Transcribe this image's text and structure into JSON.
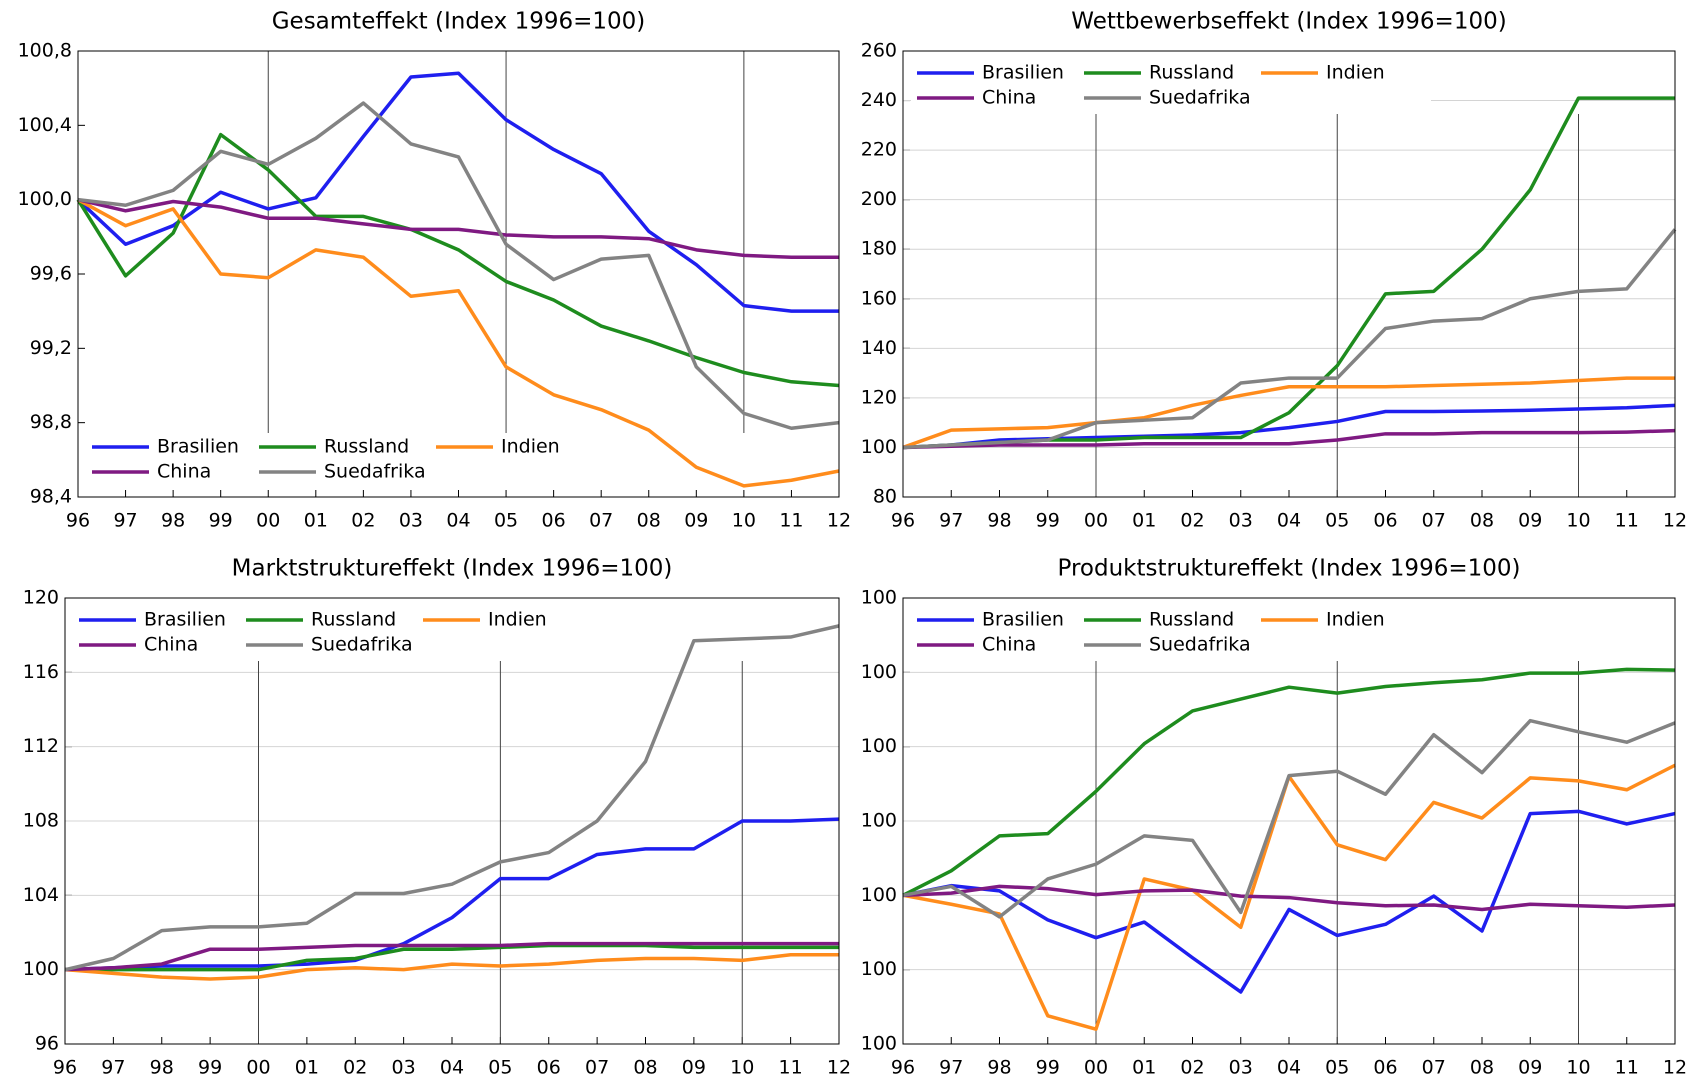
{
  "chart_data": [
    {
      "type": "line",
      "title": "Gesamteffekt (Index 1996=100)",
      "categories": [
        "96",
        "97",
        "98",
        "99",
        "00",
        "01",
        "02",
        "03",
        "04",
        "05",
        "06",
        "07",
        "08",
        "09",
        "10",
        "11",
        "12"
      ],
      "ylim": [
        98.4,
        100.8
      ],
      "yticks": [
        {
          "value": 98.4,
          "label": "98,4"
        },
        {
          "value": 98.8,
          "label": "98,8"
        },
        {
          "value": 99.2,
          "label": "99,2"
        },
        {
          "value": 99.6,
          "label": "99,6"
        },
        {
          "value": 100.0,
          "label": "100,0"
        },
        {
          "value": 100.4,
          "label": "100,4"
        },
        {
          "value": 100.8,
          "label": "100,8"
        }
      ],
      "grid": false,
      "legend": "lower left",
      "series": [
        {
          "name": "Brasilien",
          "color": "#1f1fef",
          "values": [
            100.0,
            99.76,
            99.86,
            100.04,
            99.95,
            100.01,
            100.34,
            100.66,
            100.68,
            100.43,
            100.27,
            100.14,
            99.83,
            99.65,
            99.43,
            99.4,
            99.4
          ]
        },
        {
          "name": "Russland",
          "color": "#1e8c1e",
          "values": [
            100.0,
            99.59,
            99.82,
            100.35,
            100.16,
            99.91,
            99.91,
            99.84,
            99.73,
            99.56,
            99.46,
            99.32,
            99.24,
            99.15,
            99.07,
            99.02,
            99.0
          ]
        },
        {
          "name": "Indien",
          "color": "#ff8c1c",
          "values": [
            100.0,
            99.86,
            99.95,
            99.6,
            99.58,
            99.73,
            99.69,
            99.48,
            99.51,
            99.1,
            98.95,
            98.87,
            98.76,
            98.56,
            98.46,
            98.49,
            98.54
          ]
        },
        {
          "name": "China",
          "color": "#7f1a82",
          "values": [
            100.0,
            99.94,
            99.99,
            99.96,
            99.9,
            99.9,
            99.87,
            99.84,
            99.84,
            99.81,
            99.8,
            99.8,
            99.79,
            99.73,
            99.7,
            99.69,
            99.69
          ]
        },
        {
          "name": "Suedafrika",
          "color": "#838383",
          "values": [
            100.0,
            99.97,
            100.05,
            100.26,
            100.19,
            100.33,
            100.52,
            100.3,
            100.23,
            99.76,
            99.57,
            99.68,
            99.7,
            99.1,
            98.85,
            98.77,
            98.8
          ]
        }
      ]
    },
    {
      "type": "line",
      "title": "Wettbewerbseffekt (Index 1996=100)",
      "categories": [
        "96",
        "97",
        "98",
        "99",
        "00",
        "01",
        "02",
        "03",
        "04",
        "05",
        "06",
        "07",
        "08",
        "09",
        "10",
        "11",
        "12"
      ],
      "ylim": [
        80,
        260
      ],
      "yticks": [
        80,
        100,
        120,
        140,
        160,
        180,
        200,
        220,
        240,
        260
      ],
      "grid": true,
      "legend": "upper left",
      "series": [
        {
          "name": "Brasilien",
          "color": "#1f1fef",
          "values": [
            100,
            101,
            103,
            103.5,
            104,
            104.5,
            105,
            106,
            108,
            110.5,
            114.5,
            114.5,
            114.7,
            115,
            115.5,
            116,
            117
          ]
        },
        {
          "name": "Russland",
          "color": "#1e8c1e",
          "values": [
            100,
            101,
            102,
            103,
            103,
            104,
            104,
            104,
            114,
            133,
            162,
            163,
            180,
            204,
            241,
            241,
            241
          ]
        },
        {
          "name": "Indien",
          "color": "#ff8c1c",
          "values": [
            100,
            107,
            107.5,
            108,
            110,
            112,
            117,
            121,
            124.5,
            124.5,
            124.5,
            125,
            125.5,
            126,
            127,
            128,
            128
          ]
        },
        {
          "name": "China",
          "color": "#7f1a82",
          "values": [
            100,
            100.5,
            101,
            101,
            101,
            101.5,
            101.5,
            101.5,
            101.5,
            103,
            105.5,
            105.5,
            106,
            106,
            106,
            106.2,
            106.8
          ]
        },
        {
          "name": "Suedafrika",
          "color": "#838383",
          "values": [
            100,
            101,
            102,
            103,
            110,
            111,
            112,
            126,
            128,
            128,
            148,
            151,
            152,
            160,
            163,
            164,
            188
          ]
        }
      ]
    },
    {
      "type": "line",
      "title": "Marktstruktureffekt (Index 1996=100)",
      "categories": [
        "96",
        "97",
        "98",
        "99",
        "00",
        "01",
        "02",
        "03",
        "04",
        "05",
        "06",
        "07",
        "08",
        "09",
        "10",
        "11",
        "12"
      ],
      "ylim": [
        96,
        120
      ],
      "yticks": [
        96,
        100,
        104,
        108,
        112,
        116,
        120
      ],
      "grid": true,
      "legend": "upper left",
      "series": [
        {
          "name": "Brasilien",
          "color": "#1f1fef",
          "values": [
            100,
            100.1,
            100.2,
            100.2,
            100.2,
            100.3,
            100.5,
            101.4,
            102.8,
            104.9,
            104.9,
            106.2,
            106.5,
            106.5,
            108,
            108,
            108.1
          ]
        },
        {
          "name": "Russland",
          "color": "#1e8c1e",
          "values": [
            100,
            100,
            100,
            100,
            100,
            100.5,
            100.6,
            101.1,
            101.1,
            101.2,
            101.3,
            101.3,
            101.3,
            101.2,
            101.2,
            101.2,
            101.2
          ]
        },
        {
          "name": "Indien",
          "color": "#ff8c1c",
          "values": [
            100,
            99.8,
            99.6,
            99.5,
            99.6,
            100,
            100.1,
            100,
            100.3,
            100.2,
            100.3,
            100.5,
            100.6,
            100.6,
            100.5,
            100.8,
            100.8
          ]
        },
        {
          "name": "China",
          "color": "#7f1a82",
          "values": [
            100,
            100.1,
            100.3,
            101.1,
            101.1,
            101.2,
            101.3,
            101.3,
            101.3,
            101.3,
            101.4,
            101.4,
            101.4,
            101.4,
            101.4,
            101.4,
            101.4
          ]
        },
        {
          "name": "Suedafrika",
          "color": "#838383",
          "values": [
            100,
            100.6,
            102.1,
            102.3,
            102.3,
            102.5,
            104.1,
            104.1,
            104.6,
            105.8,
            106.3,
            108,
            111.2,
            117.7,
            117.8,
            117.9,
            118.5
          ]
        }
      ]
    },
    {
      "type": "line",
      "title": "Produktstruktureffekt (Index 1996=100)",
      "categories": [
        "96",
        "97",
        "98",
        "99",
        "00",
        "01",
        "02",
        "03",
        "04",
        "05",
        "06",
        "07",
        "08",
        "09",
        "10",
        "11",
        "12"
      ],
      "ylim": [
        99.8,
        100.4
      ],
      "yticks": [
        {
          "value": 99.8,
          "label": "100"
        },
        {
          "value": 99.9,
          "label": "100"
        },
        {
          "value": 100.0,
          "label": "100"
        },
        {
          "value": 100.1,
          "label": "100"
        },
        {
          "value": 100.2,
          "label": "100"
        },
        {
          "value": 100.3,
          "label": "100"
        },
        {
          "value": 100.4,
          "label": "100"
        }
      ],
      "grid": true,
      "legend": "upper left",
      "series": [
        {
          "name": "Brasilien",
          "color": "#1f1fef",
          "values": [
            100.0,
            100.013,
            100.006,
            99.967,
            99.943,
            99.964,
            99.916,
            99.87,
            99.981,
            99.946,
            99.961,
            99.999,
            99.952,
            100.11,
            100.113,
            100.096,
            100.11
          ]
        },
        {
          "name": "Russland",
          "color": "#1e8c1e",
          "values": [
            100.0,
            100.033,
            100.08,
            100.083,
            100.14,
            100.204,
            100.248,
            100.264,
            100.28,
            100.272,
            100.281,
            100.286,
            100.29,
            100.299,
            100.299,
            100.304,
            100.303
          ]
        },
        {
          "name": "Indien",
          "color": "#ff8c1c",
          "values": [
            100.0,
            99.988,
            99.975,
            99.838,
            99.82,
            100.022,
            100.007,
            99.957,
            100.16,
            100.068,
            100.048,
            100.125,
            100.104,
            100.158,
            100.154,
            100.142,
            100.175
          ]
        },
        {
          "name": "China",
          "color": "#7f1a82",
          "values": [
            100.0,
            100.003,
            100.012,
            100.009,
            100.001,
            100.006,
            100.007,
            99.999,
            99.997,
            99.99,
            99.986,
            99.987,
            99.981,
            99.988,
            99.986,
            99.984,
            99.987
          ]
        },
        {
          "name": "Suedafrika",
          "color": "#838383",
          "values": [
            100.0,
            100.012,
            99.971,
            100.022,
            100.042,
            100.08,
            100.074,
            99.977,
            100.161,
            100.167,
            100.136,
            100.216,
            100.165,
            100.235,
            100.22,
            100.206,
            100.232
          ]
        }
      ]
    }
  ]
}
